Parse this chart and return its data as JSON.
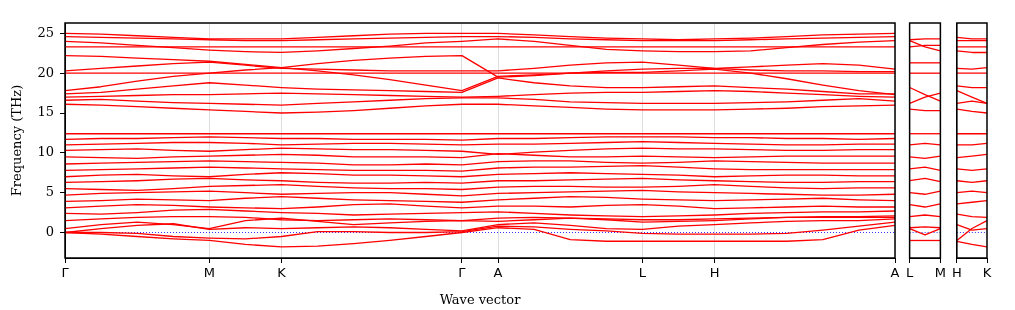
{
  "chart_data": [
    {
      "type": "line",
      "xlabel": "Wave vector",
      "ylabel": "Frequency (THz)",
      "categories": [
        "Γ",
        null,
        null,
        null,
        "M",
        null,
        "K",
        null,
        null,
        null,
        null,
        "Γ",
        "A",
        null,
        null,
        null,
        "L",
        null,
        "H",
        null,
        null,
        null,
        null,
        "A"
      ],
      "ylim": [
        -3.2,
        26.3
      ],
      "yticks": [
        0,
        5,
        10,
        15,
        20,
        25
      ],
      "grid": "x",
      "marker": "none",
      "line_style": "solid",
      "legend": false,
      "ref_lines": [
        {
          "axis": "y",
          "value": 0,
          "color": "#0000ff",
          "line_style": "dotted"
        }
      ],
      "series": [
        {
          "color": "#ff0000",
          "values": [
            0,
            -0.2,
            -0.5,
            -0.8,
            -1.0,
            -1.5,
            -1.8,
            -1.7,
            -1.4,
            -1.0,
            -0.5,
            0,
            0.6,
            0.4,
            -0.9,
            -1.1,
            -1.1,
            -1.1,
            -1.1,
            -1.1,
            -1.1,
            -0.9,
            0.3,
            0.9
          ]
        },
        {
          "color": "#ff0000",
          "values": [
            0,
            0,
            -0.1,
            -0.5,
            -0.7,
            -0.8,
            -0.5,
            0.1,
            0.1,
            0,
            0,
            0.1,
            0.8,
            0.7,
            0.4,
            0.2,
            -0.1,
            -0.2,
            -0.2,
            -0.2,
            -0.1,
            0.3,
            0.8,
            1.3
          ]
        },
        {
          "color": "#ff0000",
          "values": [
            0,
            0.5,
            0.9,
            1.1,
            0.4,
            0.6,
            0.5,
            0.6,
            0.7,
            0.6,
            0.4,
            0.2,
            1.0,
            1.2,
            0.9,
            0.5,
            0.4,
            0.8,
            1.0,
            1.2,
            1.4,
            1.5,
            1.5,
            1.7
          ]
        },
        {
          "color": "#ff0000",
          "values": [
            0.5,
            1.0,
            1.3,
            1.0,
            0.5,
            1.5,
            1.8,
            1.4,
            1.0,
            1.2,
            1.4,
            1.5,
            1.4,
            1.6,
            1.8,
            1.6,
            1.3,
            1.4,
            1.5,
            1.7,
            1.9,
            2.0,
            2.0,
            2.1
          ]
        },
        {
          "color": "#ff0000",
          "values": [
            1.5,
            1.7,
            1.9,
            2.0,
            2.0,
            1.9,
            1.6,
            1.5,
            1.6,
            1.7,
            1.6,
            1.5,
            1.8,
            1.9,
            1.8,
            1.7,
            1.6,
            1.6,
            1.7,
            1.8,
            1.9,
            1.9,
            1.9,
            1.9
          ]
        },
        {
          "color": "#ff0000",
          "values": [
            2.4,
            2.3,
            2.5,
            2.8,
            2.9,
            2.7,
            2.5,
            2.4,
            2.2,
            2.3,
            2.4,
            2.5,
            2.6,
            2.4,
            2.2,
            2.1,
            2.0,
            2.1,
            2.2,
            2.4,
            2.5,
            2.6,
            2.6,
            2.7
          ]
        },
        {
          "color": "#ff0000",
          "values": [
            3.1,
            3.3,
            3.5,
            3.4,
            3.2,
            3.1,
            3.0,
            3.2,
            3.5,
            3.6,
            3.3,
            3.1,
            3.3,
            3.3,
            3.2,
            3.4,
            3.5,
            3.3,
            3.0,
            3.1,
            3.2,
            3.3,
            3.2,
            3.2
          ]
        },
        {
          "color": "#ff0000",
          "values": [
            3.9,
            4.0,
            4.2,
            4.1,
            4.0,
            4.3,
            4.5,
            4.3,
            4.1,
            4.0,
            3.9,
            3.8,
            4.1,
            4.3,
            4.5,
            4.4,
            4.2,
            4.1,
            4.0,
            4.1,
            4.2,
            4.3,
            4.1,
            4.0
          ]
        },
        {
          "color": "#ff0000",
          "values": [
            4.7,
            4.9,
            5.0,
            5.1,
            5.2,
            5.0,
            4.8,
            4.9,
            5.0,
            5.0,
            4.8,
            4.6,
            4.9,
            5.0,
            5.1,
            5.2,
            5.3,
            5.1,
            5.0,
            4.9,
            4.8,
            4.7,
            4.7,
            4.8
          ]
        },
        {
          "color": "#ff0000",
          "values": [
            5.5,
            5.4,
            5.3,
            5.5,
            5.8,
            5.9,
            6.0,
            5.8,
            5.6,
            5.5,
            5.5,
            5.4,
            5.7,
            5.8,
            5.8,
            5.7,
            5.7,
            5.8,
            6.0,
            5.8,
            5.6,
            5.5,
            5.6,
            5.6
          ]
        },
        {
          "color": "#ff0000",
          "values": [
            6.3,
            6.4,
            6.5,
            6.7,
            6.8,
            6.6,
            6.5,
            6.3,
            6.2,
            6.2,
            6.3,
            6.2,
            6.5,
            6.5,
            6.6,
            6.7,
            6.8,
            6.6,
            6.5,
            6.4,
            6.3,
            6.3,
            6.4,
            6.4
          ]
        },
        {
          "color": "#ff0000",
          "values": [
            7.0,
            7.2,
            7.3,
            7.1,
            7.0,
            7.3,
            7.5,
            7.4,
            7.2,
            7.2,
            7.1,
            7.0,
            7.3,
            7.4,
            7.5,
            7.4,
            7.3,
            7.2,
            7.0,
            7.1,
            7.2,
            7.2,
            7.1,
            7.1
          ]
        },
        {
          "color": "#ff0000",
          "values": [
            7.8,
            7.9,
            8.0,
            8.1,
            8.2,
            8.1,
            8.0,
            7.9,
            7.8,
            7.8,
            7.8,
            7.7,
            8.1,
            8.2,
            8.2,
            8.3,
            8.4,
            8.2,
            8.0,
            7.9,
            7.9,
            7.9,
            7.9,
            7.9
          ]
        },
        {
          "color": "#ff0000",
          "values": [
            8.6,
            8.7,
            8.8,
            8.9,
            9.0,
            8.9,
            8.8,
            8.7,
            8.5,
            8.5,
            8.6,
            8.5,
            8.9,
            9.0,
            9.0,
            8.8,
            8.7,
            8.8,
            9.0,
            8.9,
            8.8,
            8.7,
            8.7,
            8.7
          ]
        },
        {
          "color": "#ff0000",
          "values": [
            9.5,
            9.4,
            9.3,
            9.5,
            9.6,
            9.7,
            9.8,
            9.7,
            9.5,
            9.5,
            9.5,
            9.4,
            9.9,
            9.7,
            9.5,
            9.5,
            9.6,
            9.5,
            9.4,
            9.5,
            9.6,
            9.6,
            9.6,
            9.6
          ]
        },
        {
          "color": "#ff0000",
          "values": [
            10.3,
            10.4,
            10.5,
            10.3,
            10.2,
            10.4,
            10.6,
            10.5,
            10.4,
            10.4,
            10.3,
            10.2,
            9.8,
            10.1,
            10.3,
            10.5,
            10.6,
            10.5,
            10.5,
            10.4,
            10.3,
            10.3,
            10.4,
            10.4
          ]
        },
        {
          "color": "#ff0000",
          "values": [
            11.0,
            11.1,
            11.2,
            11.3,
            11.3,
            11.2,
            11.0,
            11.1,
            11.2,
            11.2,
            11.1,
            11.0,
            11.1,
            11.1,
            11.2,
            11.3,
            11.4,
            11.3,
            11.2,
            11.1,
            11.0,
            11.0,
            11.1,
            11.1
          ]
        },
        {
          "color": "#ff0000",
          "values": [
            11.7,
            11.8,
            11.8,
            11.9,
            12.0,
            11.9,
            11.8,
            11.8,
            11.7,
            11.7,
            11.7,
            11.6,
            11.8,
            11.8,
            11.9,
            12.0,
            12.0,
            12.0,
            11.9,
            11.9,
            11.8,
            11.8,
            11.7,
            11.8
          ]
        },
        {
          "color": "#ff0000",
          "values": [
            12.4,
            12.4,
            12.4,
            12.4,
            12.4,
            12.4,
            12.4,
            12.4,
            12.4,
            12.4,
            12.4,
            12.4,
            12.4,
            12.4,
            12.4,
            12.4,
            12.4,
            12.4,
            12.4,
            12.4,
            12.4,
            12.4,
            12.4,
            12.4
          ]
        },
        {
          "color": "#ff0000",
          "values": [
            16.1,
            16.0,
            15.8,
            15.6,
            15.4,
            15.2,
            15.0,
            15.1,
            15.3,
            15.6,
            15.9,
            16.1,
            16.1,
            15.9,
            15.7,
            15.5,
            15.4,
            15.4,
            15.4,
            15.5,
            15.6,
            15.8,
            15.9,
            16.0
          ]
        },
        {
          "color": "#ff0000",
          "values": [
            16.6,
            16.7,
            16.5,
            16.3,
            16.2,
            16.1,
            16.0,
            16.2,
            16.4,
            16.6,
            16.8,
            16.9,
            16.9,
            16.7,
            16.4,
            16.3,
            16.2,
            16.2,
            16.2,
            16.3,
            16.4,
            16.6,
            16.8,
            16.5
          ]
        },
        {
          "color": "#ff0000",
          "values": [
            17.0,
            17.1,
            17.2,
            17.3,
            17.3,
            17.4,
            17.5,
            17.4,
            17.3,
            17.2,
            17.1,
            17.0,
            17.1,
            17.3,
            17.5,
            17.6,
            17.6,
            17.7,
            17.8,
            17.7,
            17.5,
            17.3,
            17.1,
            17.0
          ]
        },
        {
          "color": "#ff0000",
          "values": [
            17.4,
            17.6,
            18.0,
            18.4,
            18.8,
            18.5,
            18.2,
            18.0,
            17.9,
            17.8,
            17.7,
            17.6,
            19.4,
            18.8,
            18.4,
            18.2,
            18.2,
            18.3,
            18.4,
            18.2,
            18.0,
            17.7,
            17.4,
            17.4
          ]
        },
        {
          "color": "#ff0000",
          "values": [
            17.8,
            18.3,
            19.0,
            19.6,
            20.0,
            20.4,
            20.7,
            20.3,
            19.8,
            19.2,
            18.5,
            17.8,
            19.6,
            19.8,
            20.0,
            20.1,
            20.1,
            20.3,
            20.5,
            20.0,
            19.3,
            18.5,
            17.8,
            17.3
          ]
        },
        {
          "color": "#ff0000",
          "values": [
            20.0,
            20.0,
            20.0,
            20.0,
            20.0,
            20.0,
            20.0,
            20.0,
            20.0,
            20.0,
            20.0,
            20.0,
            20.0,
            20.0,
            20.0,
            20.0,
            20.0,
            20.0,
            20.0,
            20.0,
            20.0,
            20.0,
            20.0,
            20.0
          ]
        },
        {
          "color": "#ff0000",
          "values": [
            20.3,
            20.6,
            20.9,
            21.2,
            21.4,
            21.0,
            20.6,
            20.5,
            20.4,
            20.3,
            20.3,
            20.3,
            20.3,
            20.6,
            21.0,
            21.3,
            21.4,
            21.0,
            20.6,
            20.4,
            20.3,
            20.3,
            20.2,
            20.2
          ]
        },
        {
          "color": "#ff0000",
          "values": [
            22.2,
            22.1,
            21.9,
            21.7,
            21.5,
            21.1,
            20.7,
            21.2,
            21.6,
            21.9,
            22.1,
            22.2,
            19.5,
            19.7,
            20.0,
            20.3,
            20.5,
            20.6,
            20.6,
            20.8,
            21.0,
            21.2,
            21.0,
            20.5
          ]
        },
        {
          "color": "#ff0000",
          "values": [
            23.3,
            23.3,
            23.3,
            23.3,
            23.3,
            23.3,
            23.3,
            23.3,
            23.3,
            23.3,
            23.3,
            23.3,
            23.3,
            23.3,
            23.3,
            23.3,
            23.3,
            23.3,
            23.3,
            23.3,
            23.3,
            23.3,
            23.3,
            23.3
          ]
        },
        {
          "color": "#ff0000",
          "values": [
            24.0,
            23.8,
            23.5,
            23.2,
            22.9,
            22.7,
            22.6,
            22.8,
            23.1,
            23.4,
            23.8,
            24.0,
            24.3,
            24.0,
            23.5,
            23.0,
            22.8,
            22.7,
            22.7,
            22.8,
            23.2,
            23.6,
            23.9,
            24.1
          ]
        },
        {
          "color": "#ff0000",
          "values": [
            24.6,
            24.5,
            24.4,
            24.3,
            24.2,
            24.1,
            24.1,
            24.2,
            24.3,
            24.4,
            24.5,
            24.6,
            24.6,
            24.5,
            24.3,
            24.2,
            24.1,
            24.1,
            24.1,
            24.2,
            24.3,
            24.4,
            24.5,
            24.6
          ]
        },
        {
          "color": "#ff0000",
          "values": [
            25.0,
            24.9,
            24.7,
            24.5,
            24.3,
            24.3,
            24.3,
            24.5,
            24.7,
            24.9,
            25.0,
            25.0,
            25.0,
            24.8,
            24.6,
            24.4,
            24.3,
            24.2,
            24.3,
            24.4,
            24.6,
            24.8,
            24.9,
            25.0
          ]
        }
      ]
    },
    {
      "type": "line",
      "categories": [
        "L",
        null,
        "M"
      ],
      "ylim": [
        -3.2,
        26.3
      ],
      "tick_labels": "x",
      "marker": "none",
      "line_style": "solid",
      "legend": false,
      "ref_lines": [
        {
          "axis": "y",
          "value": 0,
          "color": "#0000ff",
          "line_style": "dotted"
        }
      ],
      "series": [
        {
          "color": "#ff0000",
          "values": [
            -1,
            -1,
            -1
          ]
        },
        {
          "color": "#ff0000",
          "values": [
            0.5,
            -0.3,
            0.5
          ]
        },
        {
          "color": "#ff0000",
          "values": [
            0.6,
            0.7,
            0.6
          ]
        },
        {
          "color": "#ff0000",
          "values": [
            2.0,
            2.2,
            2.0
          ]
        },
        {
          "color": "#ff0000",
          "values": [
            3.5,
            3.2,
            3.6
          ]
        },
        {
          "color": "#ff0000",
          "values": [
            5.0,
            4.8,
            5.2
          ]
        },
        {
          "color": "#ff0000",
          "values": [
            6.5,
            6.8,
            6.4
          ]
        },
        {
          "color": "#ff0000",
          "values": [
            8.0,
            8.2,
            7.8
          ]
        },
        {
          "color": "#ff0000",
          "values": [
            9.5,
            9.3,
            9.6
          ]
        },
        {
          "color": "#ff0000",
          "values": [
            11.0,
            11.2,
            11.0
          ]
        },
        {
          "color": "#ff0000",
          "values": [
            12.4,
            12.4,
            12.4
          ]
        },
        {
          "color": "#ff0000",
          "values": [
            15.5,
            15.3,
            15.3
          ]
        },
        {
          "color": "#ff0000",
          "values": [
            16.2,
            17,
            17.5
          ]
        },
        {
          "color": "#ff0000",
          "values": [
            18.2,
            17.3,
            16.5
          ]
        },
        {
          "color": "#ff0000",
          "values": [
            20,
            20,
            20
          ]
        },
        {
          "color": "#ff0000",
          "values": [
            21.3,
            21.3,
            21.3
          ]
        },
        {
          "color": "#ff0000",
          "values": [
            23.3,
            23.5,
            23.5
          ]
        },
        {
          "color": "#ff0000",
          "values": [
            24.1,
            23.3,
            22.8
          ]
        },
        {
          "color": "#ff0000",
          "values": [
            24.2,
            24.3,
            24.3
          ]
        }
      ]
    },
    {
      "type": "line",
      "categories": [
        "H",
        null,
        "K"
      ],
      "ylim": [
        -3.2,
        26.3
      ],
      "tick_labels": "x",
      "marker": "none",
      "line_style": "solid",
      "legend": false,
      "ref_lines": [
        {
          "axis": "y",
          "value": 0,
          "color": "#0000ff",
          "line_style": "dotted"
        }
      ],
      "series": [
        {
          "color": "#ff0000",
          "values": [
            -1.1,
            -1.5,
            -1.8
          ]
        },
        {
          "color": "#ff0000",
          "values": [
            1.0,
            0.3,
            0.5
          ]
        },
        {
          "color": "#ff0000",
          "values": [
            -1.0,
            0.5,
            1.5
          ]
        },
        {
          "color": "#ff0000",
          "values": [
            2.3,
            2.0,
            1.9
          ]
        },
        {
          "color": "#ff0000",
          "values": [
            3.6,
            3.8,
            4.0
          ]
        },
        {
          "color": "#ff0000",
          "values": [
            5.0,
            5.2,
            5.0
          ]
        },
        {
          "color": "#ff0000",
          "values": [
            6.5,
            6.3,
            6.5
          ]
        },
        {
          "color": "#ff0000",
          "values": [
            8.0,
            7.8,
            8.0
          ]
        },
        {
          "color": "#ff0000",
          "values": [
            9.4,
            9.6,
            9.8
          ]
        },
        {
          "color": "#ff0000",
          "values": [
            11.0,
            11.0,
            11.2
          ]
        },
        {
          "color": "#ff0000",
          "values": [
            12.4,
            12.4,
            12.4
          ]
        },
        {
          "color": "#ff0000",
          "values": [
            15.5,
            15.2,
            15.0
          ]
        },
        {
          "color": "#ff0000",
          "values": [
            16.2,
            16.5,
            16.2
          ]
        },
        {
          "color": "#ff0000",
          "values": [
            17.8,
            17,
            16.2
          ]
        },
        {
          "color": "#ff0000",
          "values": [
            18.4,
            18.2,
            18.2
          ]
        },
        {
          "color": "#ff0000",
          "values": [
            20,
            20,
            20
          ]
        },
        {
          "color": "#ff0000",
          "values": [
            20.6,
            20.5,
            20.7
          ]
        },
        {
          "color": "#ff0000",
          "values": [
            22.8,
            22.6,
            22.6
          ]
        },
        {
          "color": "#ff0000",
          "values": [
            23.3,
            23.3,
            23.3
          ]
        },
        {
          "color": "#ff0000",
          "values": [
            24.1,
            24.1,
            24.1
          ]
        },
        {
          "color": "#ff0000",
          "values": [
            24.5,
            24.3,
            24.3
          ]
        }
      ]
    }
  ]
}
